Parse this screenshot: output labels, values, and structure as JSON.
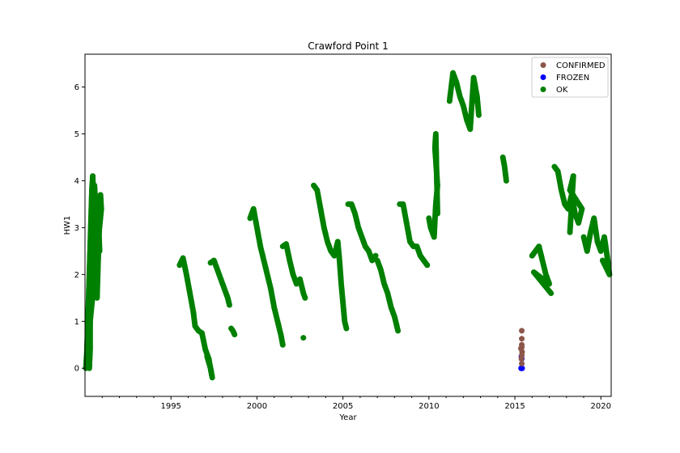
{
  "chart_data": {
    "type": "scatter",
    "title": "Crawford Point 1",
    "xlabel": "Year",
    "ylabel": "HW1",
    "xlim": [
      1990.0,
      2020.6
    ],
    "ylim": [
      -0.6,
      6.7
    ],
    "x_ticks": [
      1995,
      2000,
      2005,
      2010,
      2015,
      2020
    ],
    "x_tick_labels": [
      "1995",
      "2000",
      "2005",
      "2010",
      "2015",
      "2020"
    ],
    "y_ticks": [
      0,
      1,
      2,
      3,
      4,
      5,
      6
    ],
    "y_tick_labels": [
      "0",
      "1",
      "2",
      "3",
      "4",
      "5",
      "6"
    ],
    "legend_position": "top-right",
    "grid": false,
    "series": [
      {
        "name": "CONFIRMED",
        "color": "#8c564b",
        "points": [
          [
            2015.4,
            0.8
          ],
          [
            2015.4,
            0.63
          ],
          [
            2015.4,
            0.5
          ],
          [
            2015.4,
            0.45
          ],
          [
            2015.35,
            0.42
          ],
          [
            2015.42,
            0.35
          ],
          [
            2015.4,
            0.28
          ],
          [
            2015.38,
            0.2
          ],
          [
            2015.4,
            0.1
          ]
        ]
      },
      {
        "name": "FROZEN",
        "color": "#0000ff",
        "points": [
          [
            2015.38,
            0.25
          ],
          [
            2015.4,
            0.2
          ],
          [
            2015.4,
            0.0
          ],
          [
            2015.42,
            0.0
          ],
          [
            2015.36,
            0.0
          ]
        ]
      },
      {
        "name": "OK",
        "color": "#008000",
        "segments": [
          [
            [
              1990.05,
              0.0
            ],
            [
              1990.1,
              0.3
            ],
            [
              1990.15,
              0.8
            ],
            [
              1990.2,
              1.4
            ],
            [
              1990.25,
              2.0
            ],
            [
              1990.3,
              2.6
            ],
            [
              1990.35,
              3.2
            ],
            [
              1990.4,
              3.8
            ],
            [
              1990.45,
              4.1
            ],
            [
              1990.5,
              3.6
            ],
            [
              1990.55,
              3.0
            ],
            [
              1990.6,
              2.4
            ],
            [
              1990.65,
              1.9
            ],
            [
              1990.7,
              1.5
            ],
            [
              1990.75,
              2.1
            ],
            [
              1990.8,
              2.7
            ],
            [
              1990.85,
              3.3
            ],
            [
              1990.9,
              3.7
            ],
            [
              1990.95,
              3.4
            ],
            [
              1990.3,
              1.0
            ],
            [
              1990.3,
              0.4
            ],
            [
              1990.25,
              0.0
            ],
            [
              1990.35,
              2.2
            ],
            [
              1990.45,
              2.9
            ],
            [
              1990.55,
              3.9
            ],
            [
              1990.65,
              3.3
            ],
            [
              1990.75,
              3.5
            ],
            [
              1990.85,
              2.5
            ]
          ],
          [
            [
              1995.5,
              2.2
            ],
            [
              1995.7,
              2.35
            ],
            [
              1995.9,
              2.0
            ],
            [
              1996.1,
              1.6
            ],
            [
              1996.3,
              1.2
            ],
            [
              1996.4,
              0.9
            ],
            [
              1996.6,
              0.8
            ],
            [
              1996.8,
              0.75
            ],
            [
              1997.0,
              0.4
            ],
            [
              1997.2,
              0.2
            ],
            [
              1997.4,
              -0.2
            ],
            [
              1997.3,
              0.0
            ],
            [
              1997.1,
              0.25
            ]
          ],
          [
            [
              1997.3,
              2.25
            ],
            [
              1997.5,
              2.3
            ],
            [
              1997.7,
              2.1
            ],
            [
              1997.9,
              1.9
            ],
            [
              1998.1,
              1.7
            ],
            [
              1998.3,
              1.5
            ],
            [
              1998.4,
              1.35
            ]
          ],
          [
            [
              1998.5,
              0.85
            ],
            [
              1998.6,
              0.8
            ],
            [
              1998.7,
              0.72
            ]
          ],
          [
            [
              1999.6,
              3.2
            ],
            [
              1999.8,
              3.4
            ],
            [
              2000.0,
              3.0
            ],
            [
              2000.2,
              2.6
            ],
            [
              2000.4,
              2.3
            ],
            [
              2000.6,
              2.0
            ],
            [
              2000.8,
              1.7
            ],
            [
              2001.0,
              1.3
            ],
            [
              2001.2,
              1.0
            ],
            [
              2001.4,
              0.7
            ],
            [
              2001.5,
              0.5
            ]
          ],
          [
            [
              2001.5,
              2.6
            ],
            [
              2001.7,
              2.65
            ],
            [
              2001.9,
              2.3
            ],
            [
              2002.1,
              2.0
            ],
            [
              2002.3,
              1.8
            ],
            [
              2002.5,
              1.9
            ],
            [
              2002.7,
              1.6
            ],
            [
              2002.8,
              1.5
            ]
          ],
          [
            [
              2002.7,
              0.65
            ]
          ],
          [
            [
              2003.3,
              3.9
            ],
            [
              2003.5,
              3.8
            ],
            [
              2003.7,
              3.4
            ],
            [
              2003.9,
              3.0
            ],
            [
              2004.1,
              2.7
            ],
            [
              2004.3,
              2.5
            ],
            [
              2004.5,
              2.4
            ],
            [
              2004.7,
              2.7
            ],
            [
              2004.8,
              2.3
            ],
            [
              2004.9,
              1.8
            ],
            [
              2005.0,
              1.4
            ],
            [
              2005.1,
              1.0
            ],
            [
              2005.2,
              0.85
            ]
          ],
          [
            [
              2005.3,
              3.5
            ],
            [
              2005.5,
              3.5
            ],
            [
              2005.7,
              3.3
            ],
            [
              2005.9,
              3.0
            ],
            [
              2006.1,
              2.8
            ],
            [
              2006.3,
              2.6
            ],
            [
              2006.5,
              2.5
            ],
            [
              2006.7,
              2.3
            ],
            [
              2006.9,
              2.4
            ]
          ],
          [
            [
              2007.0,
              2.3
            ],
            [
              2007.2,
              2.1
            ],
            [
              2007.4,
              1.8
            ],
            [
              2007.6,
              1.6
            ],
            [
              2007.8,
              1.3
            ],
            [
              2008.0,
              1.1
            ],
            [
              2008.2,
              0.8
            ]
          ],
          [
            [
              2008.3,
              3.5
            ],
            [
              2008.5,
              3.5
            ],
            [
              2008.7,
              3.1
            ],
            [
              2008.9,
              2.7
            ],
            [
              2009.1,
              2.6
            ],
            [
              2009.3,
              2.6
            ],
            [
              2009.5,
              2.4
            ],
            [
              2009.7,
              2.3
            ],
            [
              2009.9,
              2.2
            ]
          ],
          [
            [
              2010.0,
              3.2
            ],
            [
              2010.1,
              3.0
            ],
            [
              2010.3,
              2.8
            ],
            [
              2010.4,
              3.5
            ],
            [
              2010.5,
              3.9
            ],
            [
              2010.35,
              4.7
            ],
            [
              2010.4,
              5.0
            ],
            [
              2010.5,
              3.3
            ]
          ],
          [
            [
              2011.2,
              5.7
            ],
            [
              2011.4,
              6.3
            ],
            [
              2011.6,
              6.1
            ],
            [
              2011.8,
              5.8
            ],
            [
              2012.0,
              5.6
            ],
            [
              2012.2,
              5.3
            ],
            [
              2012.4,
              5.1
            ],
            [
              2012.6,
              6.2
            ],
            [
              2012.8,
              5.8
            ],
            [
              2012.9,
              5.4
            ]
          ],
          [
            [
              2014.3,
              4.5
            ],
            [
              2014.4,
              4.3
            ],
            [
              2014.5,
              4.0
            ]
          ],
          [
            [
              2016.0,
              2.4
            ],
            [
              2016.2,
              2.5
            ],
            [
              2016.4,
              2.6
            ],
            [
              2016.6,
              2.3
            ],
            [
              2016.8,
              2.0
            ],
            [
              2017.0,
              1.8
            ],
            [
              2016.1,
              2.05
            ],
            [
              2017.1,
              1.6
            ]
          ],
          [
            [
              2017.3,
              4.3
            ],
            [
              2017.5,
              4.2
            ],
            [
              2017.7,
              3.8
            ],
            [
              2017.9,
              3.5
            ],
            [
              2018.1,
              3.4
            ],
            [
              2018.3,
              3.7
            ],
            [
              2018.5,
              3.3
            ],
            [
              2018.7,
              3.1
            ],
            [
              2018.9,
              3.4
            ],
            [
              2018.2,
              3.8
            ],
            [
              2018.4,
              4.1
            ],
            [
              2018.2,
              2.9
            ]
          ],
          [
            [
              2019.0,
              2.8
            ],
            [
              2019.2,
              2.5
            ],
            [
              2019.4,
              2.9
            ],
            [
              2019.6,
              3.2
            ],
            [
              2019.8,
              2.7
            ],
            [
              2020.0,
              2.5
            ],
            [
              2020.2,
              2.8
            ],
            [
              2020.4,
              2.3
            ],
            [
              2020.5,
              2.0
            ],
            [
              2020.1,
              2.3
            ]
          ]
        ]
      }
    ]
  }
}
